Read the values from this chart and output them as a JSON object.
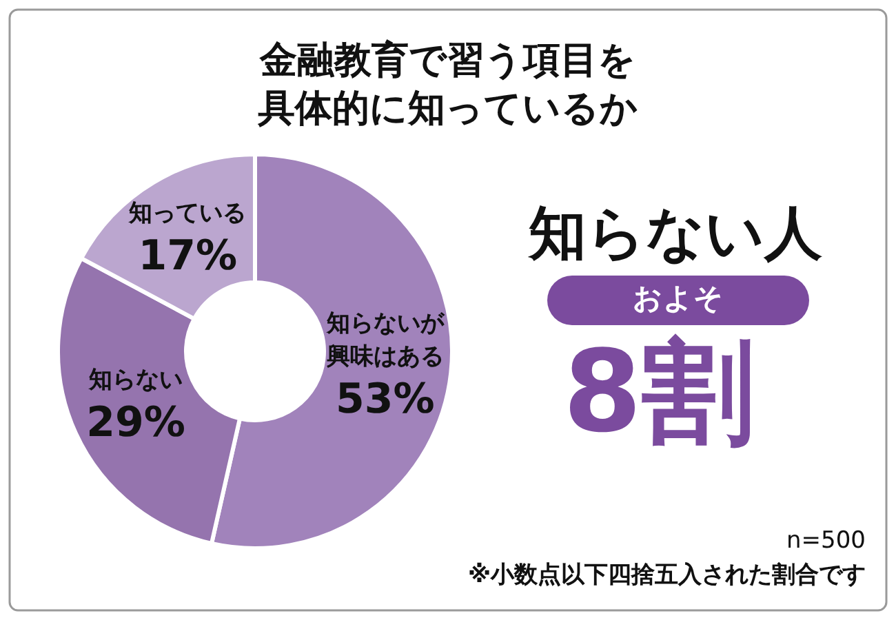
{
  "chart_data": {
    "type": "donut",
    "title": "金融教育で習う項目を具体的に知っているか",
    "categories": [
      "知らないが興味はある",
      "知らない",
      "知っている"
    ],
    "values": [
      53,
      29,
      17
    ],
    "colors": [
      "#a183bb",
      "#9574ae",
      "#bba6cf"
    ],
    "value_labels": [
      "53%",
      "29%",
      "17%"
    ],
    "annotations": [
      "知らない人",
      "およそ",
      "8割",
      "n=500",
      "※小数点以下四捨五入された割合です"
    ]
  }
}
